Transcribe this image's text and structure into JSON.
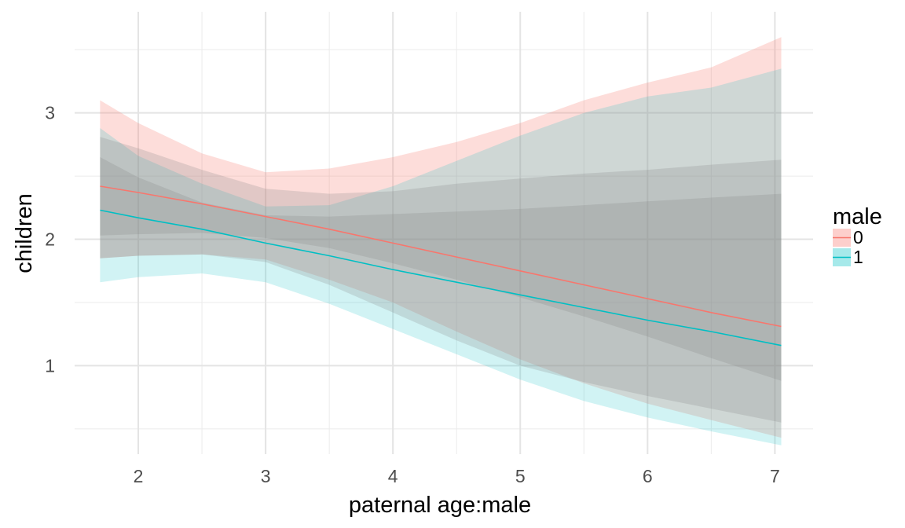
{
  "chart_data": {
    "type": "line",
    "xlabel": "paternal age:male",
    "ylabel": "children",
    "xlim": [
      1.5,
      7.3
    ],
    "ylim": [
      0.3,
      3.8
    ],
    "x_ticks": [
      2,
      3,
      4,
      5,
      6,
      7
    ],
    "y_ticks": [
      1,
      2,
      3
    ],
    "grid": true,
    "legend": {
      "title": "male",
      "position": "right"
    },
    "x": [
      1.7,
      2.0,
      2.5,
      3.0,
      3.5,
      4.0,
      4.5,
      5.0,
      5.5,
      6.0,
      6.5,
      7.05
    ],
    "series": [
      {
        "name": "0",
        "color": "#F8766D",
        "fit": [
          2.42,
          2.37,
          2.28,
          2.18,
          2.08,
          1.97,
          1.86,
          1.75,
          1.64,
          1.53,
          1.42,
          1.31
        ],
        "inner_lower": [
          2.03,
          2.04,
          2.05,
          2.01,
          1.93,
          1.81,
          1.68,
          1.54,
          1.39,
          1.23,
          1.06,
          0.88
        ],
        "inner_upper": [
          2.81,
          2.72,
          2.55,
          2.4,
          2.36,
          2.38,
          2.44,
          2.48,
          2.52,
          2.55,
          2.59,
          2.63
        ],
        "outer_lower": [
          1.85,
          1.87,
          1.88,
          1.84,
          1.68,
          1.5,
          1.27,
          1.05,
          0.86,
          0.7,
          0.57,
          0.43
        ],
        "outer_upper": [
          3.1,
          2.92,
          2.68,
          2.53,
          2.56,
          2.65,
          2.77,
          2.92,
          3.1,
          3.24,
          3.36,
          3.6
        ]
      },
      {
        "name": "1",
        "color": "#00BFC4",
        "fit": [
          2.23,
          2.17,
          2.08,
          1.97,
          1.87,
          1.76,
          1.66,
          1.56,
          1.46,
          1.36,
          1.27,
          1.16
        ],
        "inner_lower": [
          1.85,
          1.87,
          1.88,
          1.82,
          1.64,
          1.42,
          1.2,
          1.0,
          0.87,
          0.76,
          0.66,
          0.55
        ],
        "inner_upper": [
          2.65,
          2.49,
          2.29,
          2.19,
          2.18,
          2.2,
          2.22,
          2.24,
          2.27,
          2.3,
          2.33,
          2.36
        ],
        "outer_lower": [
          1.66,
          1.7,
          1.73,
          1.66,
          1.49,
          1.29,
          1.09,
          0.89,
          0.72,
          0.59,
          0.48,
          0.37
        ],
        "outer_upper": [
          2.88,
          2.66,
          2.44,
          2.26,
          2.27,
          2.42,
          2.62,
          2.82,
          3.0,
          3.13,
          3.2,
          3.35
        ]
      }
    ]
  }
}
